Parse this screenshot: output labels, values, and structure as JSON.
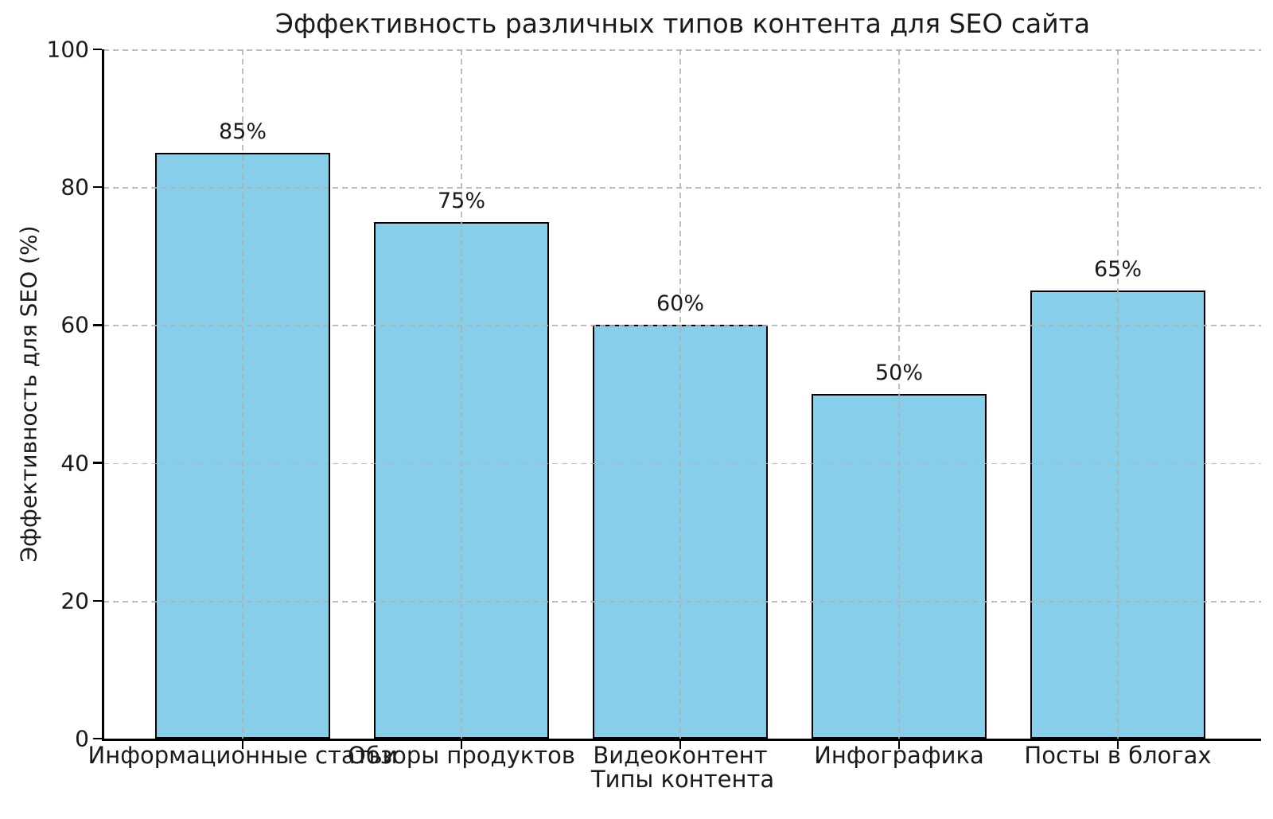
{
  "chart_data": {
    "type": "bar",
    "title": "Эффективность различных типов контента для SEO сайта",
    "xlabel": "Типы контента",
    "ylabel": "Эффективность для SEO (%)",
    "categories": [
      "Информационные статьи",
      "Обзоры продуктов",
      "Видеоконтент",
      "Инфографика",
      "Посты в блогах"
    ],
    "values": [
      85,
      75,
      60,
      50,
      65
    ],
    "bar_labels": [
      "85%",
      "75%",
      "60%",
      "50%",
      "65%"
    ],
    "yticks": [
      0,
      20,
      40,
      60,
      80,
      100
    ],
    "ylim": [
      0,
      100
    ],
    "bar_color": "#87CEEB",
    "bar_edge_color": "#000000",
    "grid": {
      "visible": true,
      "style": "dashed",
      "color": "#b2b2b2",
      "drawn_over_bars": true
    },
    "legend": "none",
    "background": "#ffffff",
    "spines": [
      "left",
      "bottom"
    ]
  }
}
